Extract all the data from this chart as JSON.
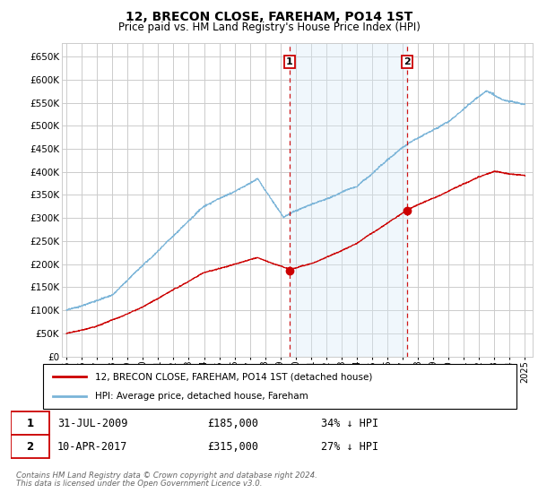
{
  "title": "12, BRECON CLOSE, FAREHAM, PO14 1ST",
  "subtitle": "Price paid vs. HM Land Registry's House Price Index (HPI)",
  "ylim": [
    0,
    680000
  ],
  "yticks": [
    0,
    50000,
    100000,
    150000,
    200000,
    250000,
    300000,
    350000,
    400000,
    450000,
    500000,
    550000,
    600000,
    650000
  ],
  "xlim_start": 1994.7,
  "xlim_end": 2025.5,
  "hpi_color": "#7ab4d8",
  "price_color": "#cc0000",
  "shade_color": "#d6eaf8",
  "marker1_date": 2009.58,
  "marker1_price": 185000,
  "marker2_date": 2017.27,
  "marker2_price": 315000,
  "legend_price": "12, BRECON CLOSE, FAREHAM, PO14 1ST (detached house)",
  "legend_hpi": "HPI: Average price, detached house, Fareham",
  "footnote1": "Contains HM Land Registry data © Crown copyright and database right 2024.",
  "footnote2": "This data is licensed under the Open Government Licence v3.0.",
  "bg_color": "#ffffff",
  "grid_color": "#cccccc",
  "plot_bg": "#ffffff"
}
